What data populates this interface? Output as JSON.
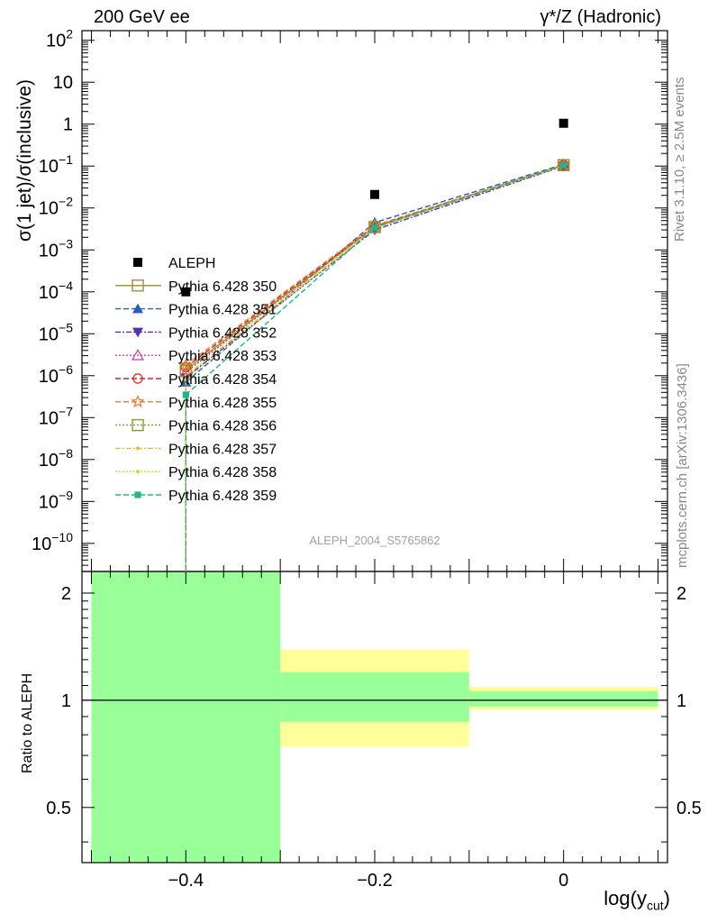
{
  "header": {
    "left": "200 GeV ee",
    "right": "γ*/Z (Hadronic)"
  },
  "side_text": {
    "top": "Rivet 3.1.10, ≥ 2.5M events",
    "bottom": "mcplots.cern.ch [arXiv:1306.3436]"
  },
  "watermark": "ALEPH_2004_S5765862",
  "chart_data": {
    "type": "line",
    "x_label_main": "log(y",
    "x_label_sub": "cut",
    "x_label_end": ")",
    "y_label": "σ(1 jet)/σ(inclusive)",
    "ratio_label": "Ratio to ALEPH",
    "xlim": [
      -0.51,
      0.11
    ],
    "ylim_log10": [
      -10.67,
      2.23
    ],
    "ratio_ylim": [
      0.35,
      2.3
    ],
    "ratio_log_scale": true,
    "x_ticks": [
      -0.4,
      -0.2,
      0
    ],
    "x_tick_labels": [
      "−0.4",
      "−0.2",
      "0"
    ],
    "y_tick_labels": [
      "10<sup>2</sup>",
      "10",
      "1",
      "10<sup>−1</sup>",
      "10<sup>−2</sup>",
      "10<sup>−3</sup>",
      "10<sup>−4</sup>",
      "10<sup>−5</sup>",
      "10<sup>−6</sup>",
      "10<sup>−7</sup>",
      "10<sup>−8</sup>",
      "10<sup>−9</sup>",
      "10<sup>−10</sup>"
    ],
    "y_tick_exponents": [
      2,
      1,
      0,
      -1,
      -2,
      -3,
      -4,
      -5,
      -6,
      -7,
      -8,
      -9,
      -10
    ],
    "ratio_ticks": [
      0.5,
      1,
      2
    ],
    "ratio_tick_labels": [
      "0.5",
      "1",
      "2"
    ],
    "data": {
      "name": "ALEPH",
      "x": [
        -0.4,
        -0.2,
        0.0
      ],
      "y": [
        0.0001,
        0.021,
        1.05
      ],
      "color": "#000000"
    },
    "series": [
      {
        "name": "Pythia 6.428 350",
        "color": "#a08c3c",
        "dash": "",
        "marker": "open-square",
        "y": [
          1.4e-06,
          0.0035,
          0.105
        ]
      },
      {
        "name": "Pythia 6.428 351",
        "color": "#1f5fbf",
        "dash": "6,3",
        "marker": "triangle-up",
        "y": [
          7e-07,
          0.0045,
          0.11
        ]
      },
      {
        "name": "Pythia 6.428 352",
        "color": "#5a2fb5",
        "dash": "6,2,2,2",
        "marker": "triangle-down",
        "y": [
          9e-07,
          0.003,
          0.1
        ]
      },
      {
        "name": "Pythia 6.428 353",
        "color": "#c03c9e",
        "dash": "2,2",
        "marker": "open-triangle",
        "y": [
          1.2e-06,
          0.0036,
          0.104
        ]
      },
      {
        "name": "Pythia 6.428 354",
        "color": "#e02020",
        "dash": "6,3",
        "marker": "open-circle",
        "y": [
          1.6e-06,
          0.0037,
          0.106
        ]
      },
      {
        "name": "Pythia 6.428 355",
        "color": "#f07828",
        "dash": "6,3",
        "marker": "open-star",
        "y": [
          1.8e-06,
          0.0038,
          0.107
        ]
      },
      {
        "name": "Pythia 6.428 356",
        "color": "#8c9a28",
        "dash": "2,2",
        "marker": "open-square",
        "y": [
          1.3e-06,
          0.0035,
          0.105
        ]
      },
      {
        "name": "Pythia 6.428 357",
        "color": "#e8c020",
        "dash": "6,2,2,2",
        "marker": "dot",
        "y": [
          1e-06,
          0.0034,
          0.104
        ]
      },
      {
        "name": "Pythia 6.428 358",
        "color": "#d0d830",
        "dash": "2,2",
        "marker": "dot",
        "y": [
          8e-07,
          0.0033,
          0.103
        ]
      },
      {
        "name": "Pythia 6.428 359",
        "color": "#20b48c",
        "dash": "6,3",
        "marker": "filled-square",
        "y": [
          3.5e-07,
          0.0034,
          0.104
        ]
      }
    ],
    "ratio_bands": [
      {
        "x0": -0.5,
        "x1": -0.3,
        "yellow": [
          0.3,
          2.4
        ],
        "green": [
          0.3,
          2.4
        ]
      },
      {
        "x0": -0.3,
        "x1": -0.1,
        "yellow": [
          0.74,
          1.39
        ],
        "green": [
          0.87,
          1.2
        ]
      },
      {
        "x0": -0.1,
        "x1": 0.1,
        "yellow": [
          0.94,
          1.09
        ],
        "green": [
          0.96,
          1.06
        ]
      }
    ],
    "colors": {
      "yellow_band": "#ffff99",
      "green_band": "#99ff99"
    }
  }
}
